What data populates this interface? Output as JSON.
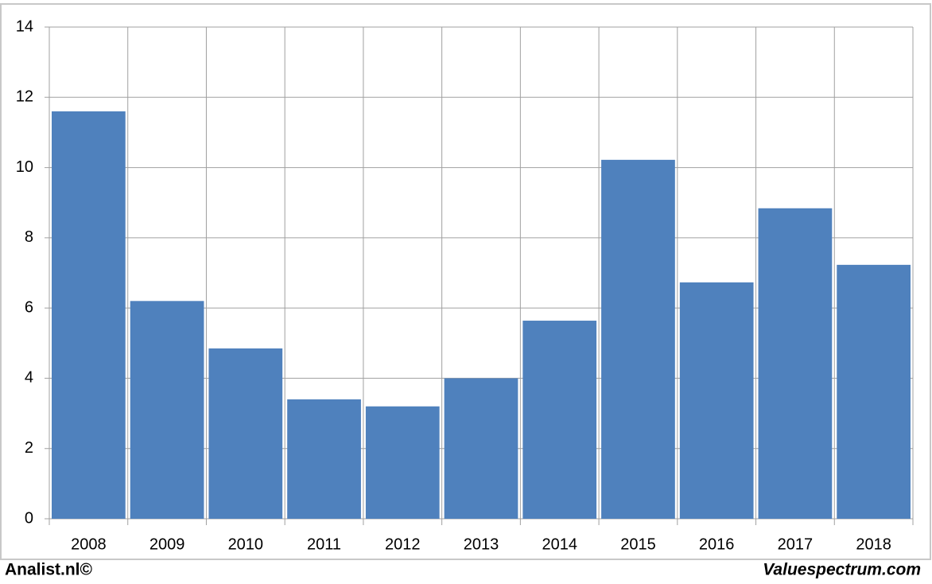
{
  "chart_data": {
    "type": "bar",
    "categories": [
      "2008",
      "2009",
      "2010",
      "2011",
      "2012",
      "2013",
      "2014",
      "2015",
      "2016",
      "2017",
      "2018"
    ],
    "values": [
      11.6,
      6.2,
      4.85,
      3.4,
      3.2,
      4.0,
      5.64,
      10.22,
      6.73,
      8.84,
      7.23
    ],
    "color": "#4f81bd",
    "ylim": [
      0,
      14
    ],
    "yticks": [
      0,
      2,
      4,
      6,
      8,
      10,
      12,
      14
    ],
    "grid": true
  },
  "footer": {
    "left": "Analist.nl©",
    "right": "Valuespectrum.com"
  }
}
